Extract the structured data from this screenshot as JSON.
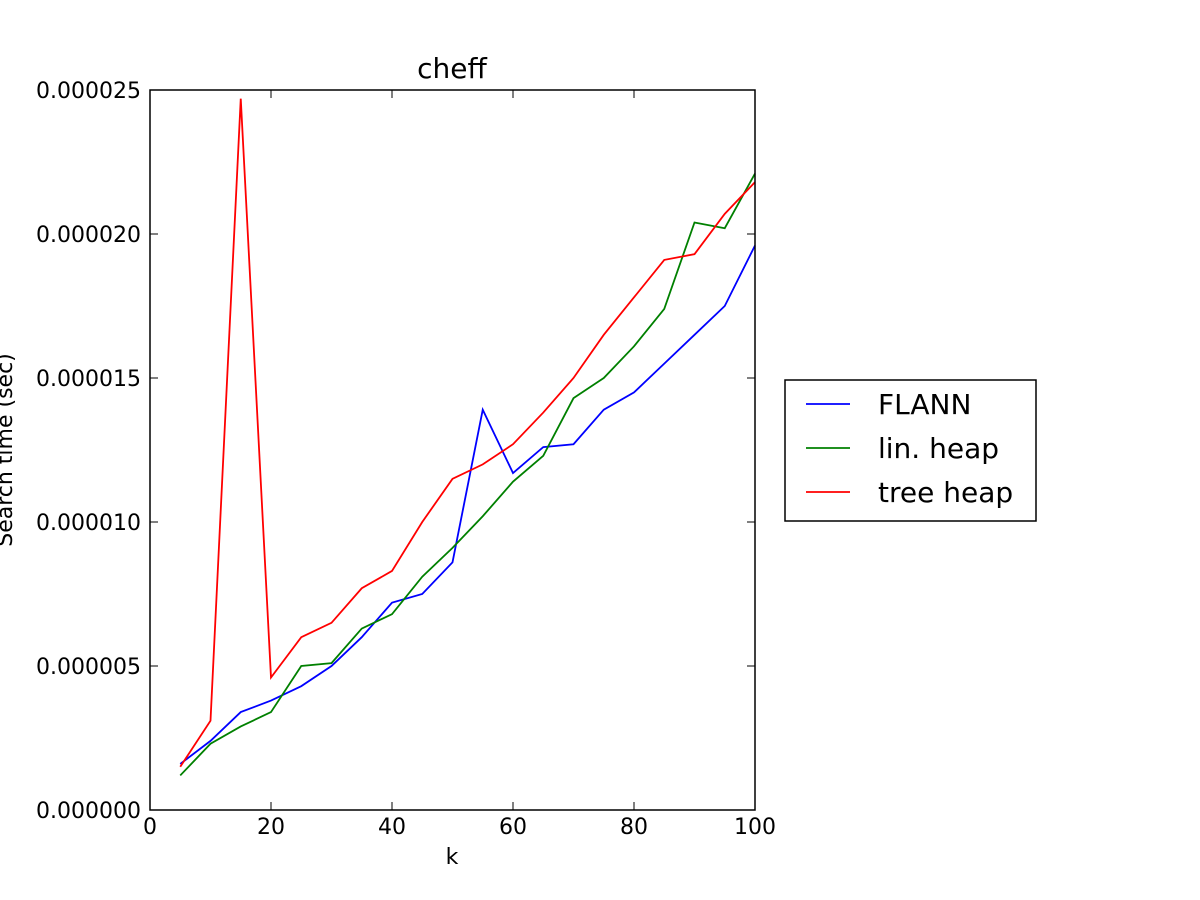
{
  "chart_data": {
    "type": "line",
    "title": "cheff",
    "xlabel": "k",
    "ylabel": "Search time (sec)",
    "xlim": [
      0,
      100
    ],
    "ylim": [
      0,
      2.5e-05
    ],
    "xticks": [
      0,
      20,
      40,
      60,
      80,
      100
    ],
    "xtick_labels": [
      "0",
      "20",
      "40",
      "60",
      "80",
      "100"
    ],
    "yticks": [
      0,
      5e-06,
      1e-05,
      1.5e-05,
      2e-05,
      2.5e-05
    ],
    "ytick_labels": [
      "0.000000",
      "0.000005",
      "0.000010",
      "0.000015",
      "0.000020",
      "0.000025"
    ],
    "grid": false,
    "legend_position": "outside-right",
    "x": [
      5,
      10,
      15,
      20,
      25,
      30,
      35,
      40,
      45,
      50,
      55,
      60,
      65,
      70,
      75,
      80,
      85,
      90,
      95,
      100
    ],
    "series": [
      {
        "name": "FLANN",
        "color": "#0000ff",
        "values": [
          1.6e-06,
          2.4e-06,
          3.4e-06,
          3.8e-06,
          4.3e-06,
          5e-06,
          6e-06,
          7.2e-06,
          7.5e-06,
          8.6e-06,
          1.39e-05,
          1.17e-05,
          1.26e-05,
          1.27e-05,
          1.39e-05,
          1.45e-05,
          1.55e-05,
          1.65e-05,
          1.75e-05,
          1.96e-05
        ]
      },
      {
        "name": "lin. heap",
        "color": "#008000",
        "values": [
          1.2e-06,
          2.3e-06,
          2.9e-06,
          3.4e-06,
          5e-06,
          5.1e-06,
          6.3e-06,
          6.8e-06,
          8.1e-06,
          9.1e-06,
          1.02e-05,
          1.14e-05,
          1.23e-05,
          1.43e-05,
          1.5e-05,
          1.61e-05,
          1.74e-05,
          2.04e-05,
          2.02e-05,
          2.21e-05
        ]
      },
      {
        "name": "tree heap",
        "color": "#ff0000",
        "values": [
          1.5e-06,
          3.1e-06,
          2.47e-05,
          4.6e-06,
          6e-06,
          6.5e-06,
          7.7e-06,
          8.3e-06,
          1e-05,
          1.15e-05,
          1.2e-05,
          1.27e-05,
          1.38e-05,
          1.5e-05,
          1.65e-05,
          1.78e-05,
          1.91e-05,
          1.93e-05,
          2.07e-05,
          2.18e-05
        ]
      }
    ]
  }
}
